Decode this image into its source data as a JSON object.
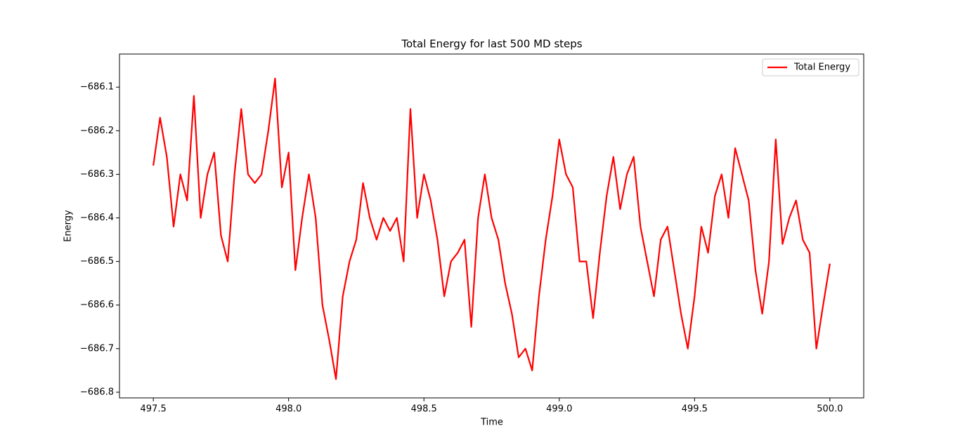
{
  "chart_data": {
    "type": "line",
    "title": "Total Energy for last 500 MD steps",
    "x_label": "Time",
    "y_label": "Energy",
    "x": [
      497.5,
      497.525,
      497.55,
      497.575,
      497.6,
      497.625,
      497.65,
      497.675,
      497.7,
      497.725,
      497.75,
      497.775,
      497.8,
      497.825,
      497.85,
      497.875,
      497.9,
      497.925,
      497.95,
      497.975,
      498.0,
      498.025,
      498.05,
      498.075,
      498.1,
      498.125,
      498.15,
      498.175,
      498.2,
      498.225,
      498.25,
      498.275,
      498.3,
      498.325,
      498.35,
      498.375,
      498.4,
      498.425,
      498.45,
      498.475,
      498.5,
      498.525,
      498.55,
      498.575,
      498.6,
      498.625,
      498.65,
      498.675,
      498.7,
      498.725,
      498.75,
      498.775,
      498.8,
      498.825,
      498.85,
      498.875,
      498.9,
      498.925,
      498.95,
      498.975,
      499.0,
      499.025,
      499.05,
      499.075,
      499.1,
      499.125,
      499.15,
      499.175,
      499.2,
      499.225,
      499.25,
      499.275,
      499.3,
      499.325,
      499.35,
      499.375,
      499.4,
      499.425,
      499.45,
      499.475,
      499.5,
      499.525,
      499.55,
      499.575,
      499.6,
      499.625,
      499.65,
      499.675,
      499.7,
      499.725,
      499.75,
      499.775,
      499.8,
      499.825,
      499.85,
      499.875,
      499.9,
      499.925,
      499.95,
      499.975,
      500.0
    ],
    "series": [
      {
        "name": "Total Energy",
        "color": "#ff0000",
        "values": [
          -686.28,
          -686.17,
          -686.26,
          -686.42,
          -686.3,
          -686.36,
          -686.12,
          -686.4,
          -686.3,
          -686.25,
          -686.44,
          -686.5,
          -686.3,
          -686.15,
          -686.3,
          -686.32,
          -686.3,
          -686.2,
          -686.08,
          -686.33,
          -686.25,
          -686.52,
          -686.4,
          -686.3,
          -686.4,
          -686.6,
          -686.68,
          -686.77,
          -686.58,
          -686.5,
          -686.45,
          -686.32,
          -686.4,
          -686.45,
          -686.4,
          -686.43,
          -686.4,
          -686.5,
          -686.15,
          -686.4,
          -686.3,
          -686.36,
          -686.45,
          -686.58,
          -686.5,
          -686.48,
          -686.45,
          -686.65,
          -686.4,
          -686.3,
          -686.4,
          -686.45,
          -686.55,
          -686.62,
          -686.72,
          -686.7,
          -686.75,
          -686.58,
          -686.45,
          -686.35,
          -686.22,
          -686.3,
          -686.33,
          -686.5,
          -686.5,
          -686.63,
          -686.48,
          -686.35,
          -686.26,
          -686.38,
          -686.3,
          -686.26,
          -686.42,
          -686.5,
          -686.58,
          -686.45,
          -686.42,
          -686.52,
          -686.62,
          -686.7,
          -686.58,
          -686.42,
          -686.48,
          -686.35,
          -686.3,
          -686.4,
          -686.24,
          -686.3,
          -686.36,
          -686.52,
          -686.62,
          -686.5,
          -686.22,
          -686.46,
          -686.4,
          -686.36,
          -686.45,
          -686.48,
          -686.7,
          -686.6,
          -686.505
        ]
      }
    ],
    "xlim": [
      497.375,
      500.125
    ],
    "ylim": [
      -686.813,
      -686.024
    ],
    "xticks": [
      497.5,
      {
        "value": 498.0,
        "label": "498.0"
      },
      498.5,
      {
        "value": 499.0,
        "label": "499.0"
      },
      499.5,
      {
        "value": 500.0,
        "label": "500.0"
      }
    ],
    "yticks": [
      {
        "value": -686.8,
        "label": "−686.8"
      },
      {
        "value": -686.7,
        "label": "−686.7"
      },
      {
        "value": -686.6,
        "label": "−686.6"
      },
      {
        "value": -686.5,
        "label": "−686.5"
      },
      {
        "value": -686.4,
        "label": "−686.4"
      },
      {
        "value": -686.3,
        "label": "−686.3"
      },
      {
        "value": -686.2,
        "label": "−686.2"
      },
      {
        "value": -686.1,
        "label": "−686.1"
      }
    ],
    "grid": false,
    "legend": "upper right"
  }
}
